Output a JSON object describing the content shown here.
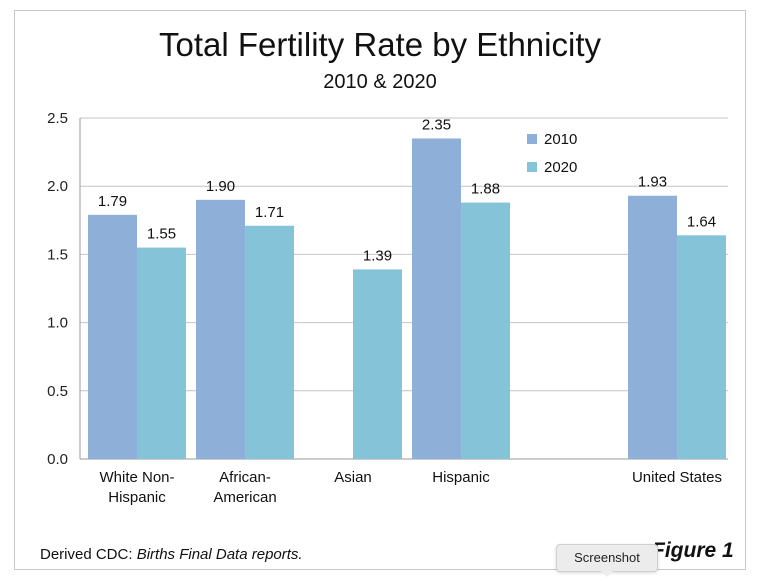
{
  "chart_data": {
    "type": "bar",
    "title": "Total Fertility Rate by Ethnicity",
    "subtitle": "2010 & 2020",
    "categories": [
      [
        "White Non-",
        "Hispanic"
      ],
      [
        "African-",
        "American"
      ],
      [
        "Asian"
      ],
      [
        "Hispanic"
      ],
      [],
      [
        "United States"
      ]
    ],
    "series": [
      {
        "name": "2010",
        "color": "#8eafd8",
        "values": [
          1.79,
          1.9,
          null,
          2.35,
          null,
          1.93
        ],
        "labels": [
          "1.79",
          "1.90",
          "",
          "2.35",
          "",
          "1.93"
        ]
      },
      {
        "name": "2020",
        "color": "#85c4d8",
        "values": [
          1.55,
          1.71,
          1.39,
          1.88,
          null,
          1.64
        ],
        "labels": [
          "1.55",
          "1.71",
          "1.39",
          "1.88",
          "",
          "1.64"
        ]
      }
    ],
    "yticks": [
      "0.0",
      "0.5",
      "1.0",
      "1.5",
      "2.0",
      "2.5"
    ],
    "ylim": [
      0,
      2.5
    ],
    "grid": true,
    "legend": "top-right"
  },
  "source": {
    "prefix": "Derived  CDC: ",
    "italic": "Births Final Data reports."
  },
  "figure_label": "Figure 1",
  "tooltip": "Screenshot"
}
